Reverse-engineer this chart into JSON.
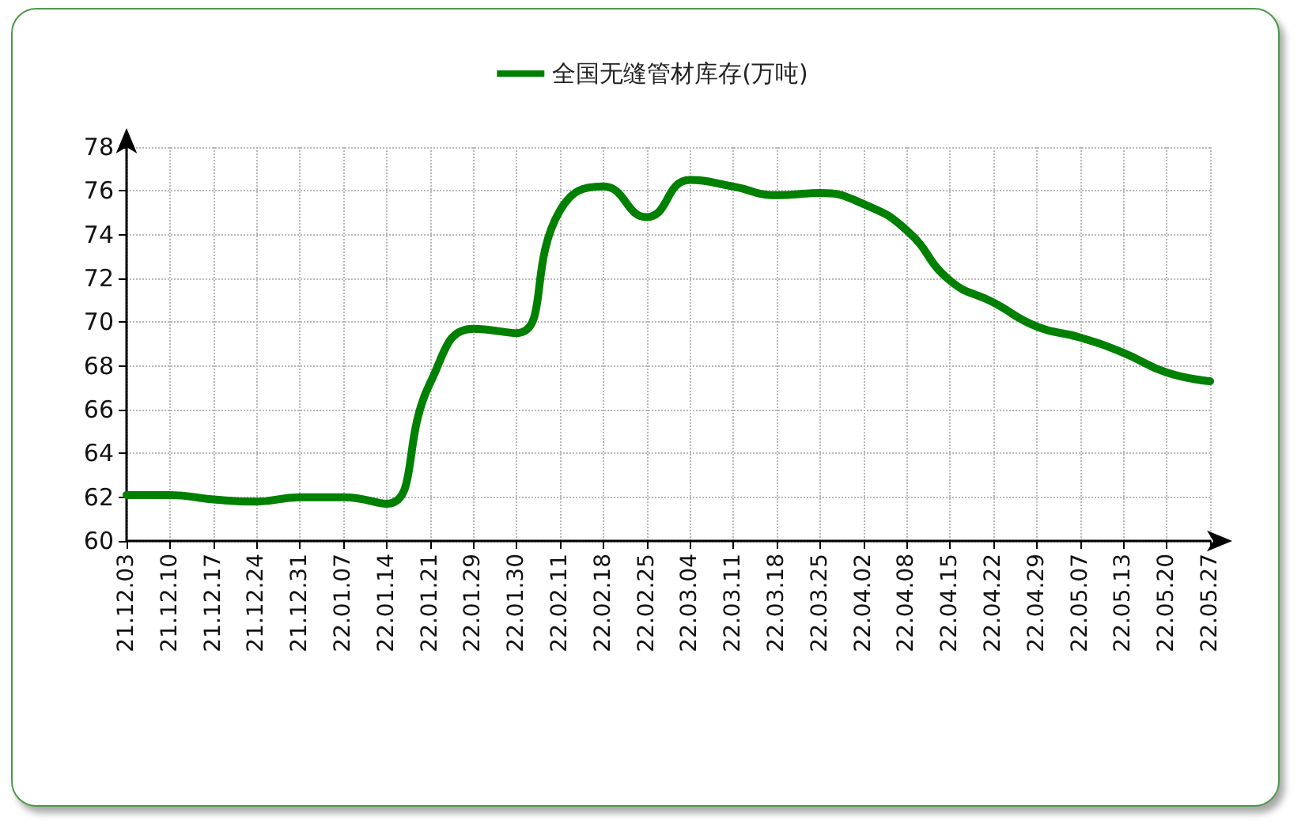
{
  "chart_data": {
    "type": "line",
    "categories": [
      "21.12.03",
      "21.12.10",
      "21.12.17",
      "21.12.24",
      "21.12.31",
      "22.01.07",
      "22.01.14",
      "22.01.21",
      "22.01.29",
      "22.01.30",
      "22.02.11",
      "22.02.18",
      "22.02.25",
      "22.03.04",
      "22.03.11",
      "22.03.18",
      "22.03.25",
      "22.04.02",
      "22.04.08",
      "22.04.15",
      "22.04.22",
      "22.04.29",
      "22.05.07",
      "22.05.13",
      "22.05.20",
      "22.05.27"
    ],
    "series": [
      {
        "name": "全国无缝管材库存(万吨)",
        "color": "#008000",
        "values": [
          62.1,
          62.1,
          61.9,
          61.8,
          62.0,
          62.0,
          61.7,
          67.2,
          69.7,
          69.5,
          75.1,
          76.2,
          74.8,
          76.5,
          76.2,
          75.8,
          75.9,
          75.4,
          74.2,
          71.9,
          70.9,
          69.8,
          69.3,
          68.6,
          67.7,
          67.3
        ]
      }
    ],
    "ylim": [
      60,
      78
    ],
    "yticks": [
      60,
      62,
      64,
      66,
      68,
      70,
      72,
      74,
      76,
      78
    ],
    "grid": true,
    "legend": "top",
    "marker": "none",
    "line_style": "solid"
  }
}
